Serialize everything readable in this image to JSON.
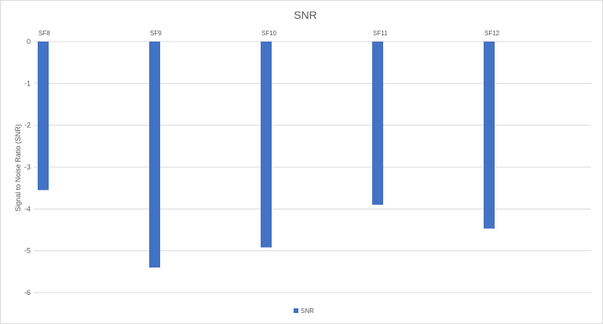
{
  "chart_data": {
    "type": "bar",
    "title": "SNR",
    "xlabel": "",
    "ylabel": "Signal to Noise Ratio (SNR)",
    "categories": [
      "SF8",
      "SF9",
      "SF10",
      "SF11",
      "SF12"
    ],
    "series": [
      {
        "name": "SNR",
        "color": "#4472c4",
        "values": [
          -3.55,
          -5.4,
          -4.92,
          -3.9,
          -4.47
        ]
      }
    ],
    "ylim": [
      -6,
      0
    ],
    "yticks": [
      "0",
      "-1",
      "-2",
      "-3",
      "-4",
      "-5",
      "-6"
    ],
    "grid": true,
    "legend_position": "bottom"
  }
}
